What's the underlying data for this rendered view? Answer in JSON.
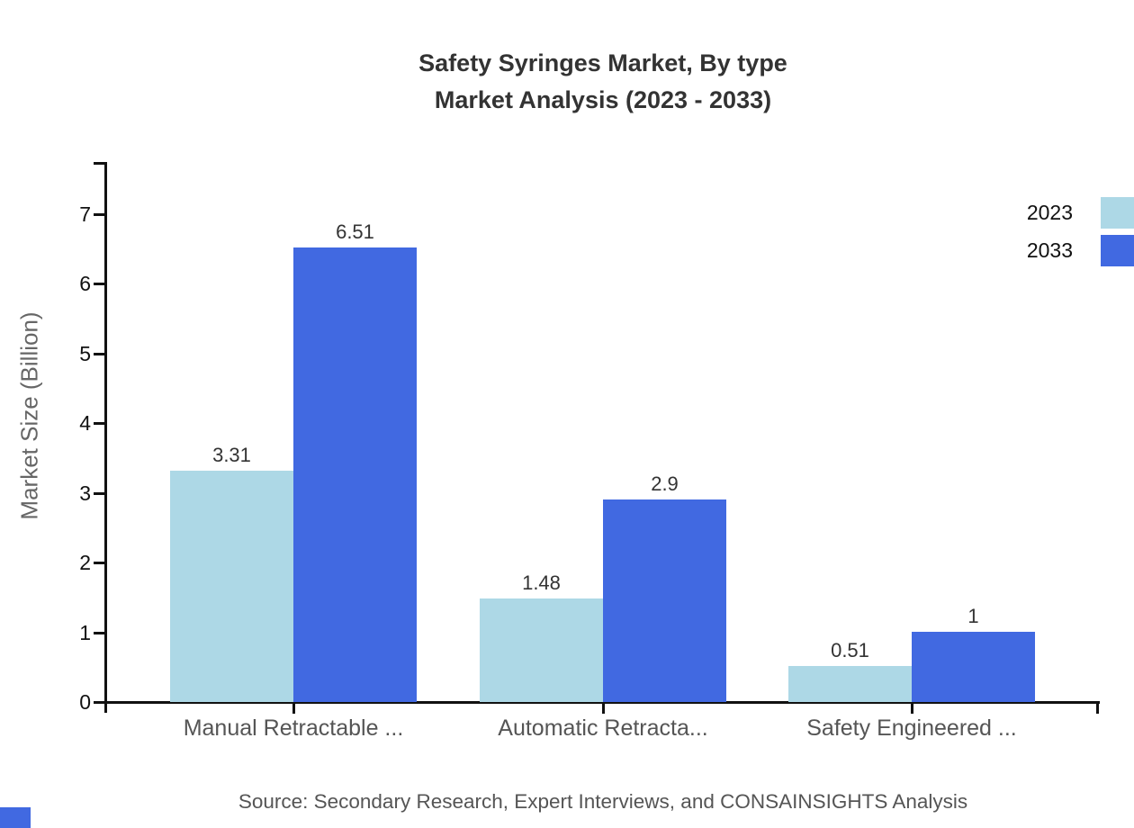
{
  "title": {
    "line1": "Safety Syringes Market, By type",
    "line2": "Market Analysis (2023 - 2033)"
  },
  "source": "Source: Secondary Research, Expert Interviews, and CONSAINSIGHTS Analysis",
  "colors": {
    "series_2023": "#ADD8E6",
    "series_2033": "#4169E1",
    "axis": "#111111"
  },
  "chart_data": {
    "type": "bar",
    "title": "Safety Syringes Market, By type — Market Analysis (2023 - 2033)",
    "categories": [
      "Manual Retractable ...",
      "Automatic Retracta...",
      "Safety Engineered ..."
    ],
    "series": [
      {
        "name": "2023",
        "color": "#ADD8E6",
        "values": [
          3.31,
          1.48,
          0.51
        ],
        "labels": [
          "3.31",
          "1.48",
          "0.51"
        ]
      },
      {
        "name": "2033",
        "color": "#4169E1",
        "values": [
          6.51,
          2.9,
          1
        ],
        "labels": [
          "6.51",
          "2.9",
          "1"
        ]
      }
    ],
    "xlabel": "",
    "ylabel": "Market Size (Billion)",
    "yticks": [
      "0",
      "1",
      "2",
      "3",
      "4",
      "5",
      "6",
      "7"
    ],
    "ylim": [
      0,
      7.75
    ],
    "grid": false,
    "legend_position": "top-right"
  }
}
